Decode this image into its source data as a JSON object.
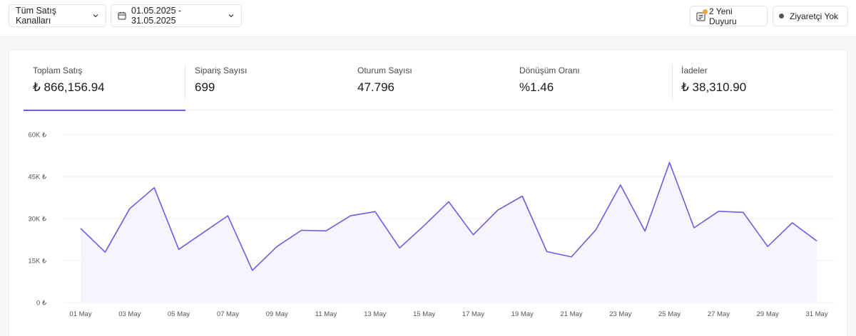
{
  "filters": {
    "channel_label": "Tüm Satış Kanalları",
    "date_range": "01.05.2025 - 31.05.2025"
  },
  "header_right": {
    "announcements": "2 Yeni Duyuru",
    "visitors": "Ziyaretçi Yok"
  },
  "colors": {
    "accent": "#6f5ce0",
    "badge": "#e8a83a"
  },
  "metrics": [
    {
      "label": "Toplam Satış",
      "value": "₺ 866,156.94",
      "active": true
    },
    {
      "label": "Sipariş Sayısı",
      "value": "699",
      "active": false
    },
    {
      "label": "Oturum Sayısı",
      "value": "47.796",
      "active": false
    },
    {
      "label": "Dönüşüm Oranı",
      "value": "%1.46",
      "active": false
    },
    {
      "label": "İadeler",
      "value": "₺ 38,310.90",
      "active": false
    }
  ],
  "chart_data": {
    "type": "area",
    "x": [
      "01 May",
      "02 May",
      "03 May",
      "04 May",
      "05 May",
      "06 May",
      "07 May",
      "08 May",
      "09 May",
      "10 May",
      "11 May",
      "12 May",
      "13 May",
      "14 May",
      "15 May",
      "16 May",
      "17 May",
      "18 May",
      "19 May",
      "20 May",
      "21 May",
      "22 May",
      "23 May",
      "24 May",
      "25 May",
      "26 May",
      "27 May",
      "28 May",
      "29 May",
      "30 May",
      "31 May"
    ],
    "x_tick_labels": [
      "01 May",
      "03 May",
      "05 May",
      "07 May",
      "09 May",
      "11 May",
      "13 May",
      "15 May",
      "17 May",
      "19 May",
      "21 May",
      "23 May",
      "25 May",
      "27 May",
      "29 May",
      "31 May"
    ],
    "values": [
      26500,
      18000,
      33500,
      41000,
      19000,
      25000,
      31000,
      11500,
      20000,
      25800,
      25600,
      31000,
      32500,
      19500,
      27500,
      36000,
      24200,
      33000,
      38000,
      18200,
      16300,
      26000,
      42000,
      25500,
      50000,
      26700,
      32600,
      32200,
      20000,
      28500,
      22000
    ],
    "y_ticks": [
      "0 ₺",
      "15K ₺",
      "30K ₺",
      "45K ₺",
      "60K ₺"
    ],
    "ylim": [
      0,
      60000
    ],
    "grid": true,
    "legend": "none"
  }
}
